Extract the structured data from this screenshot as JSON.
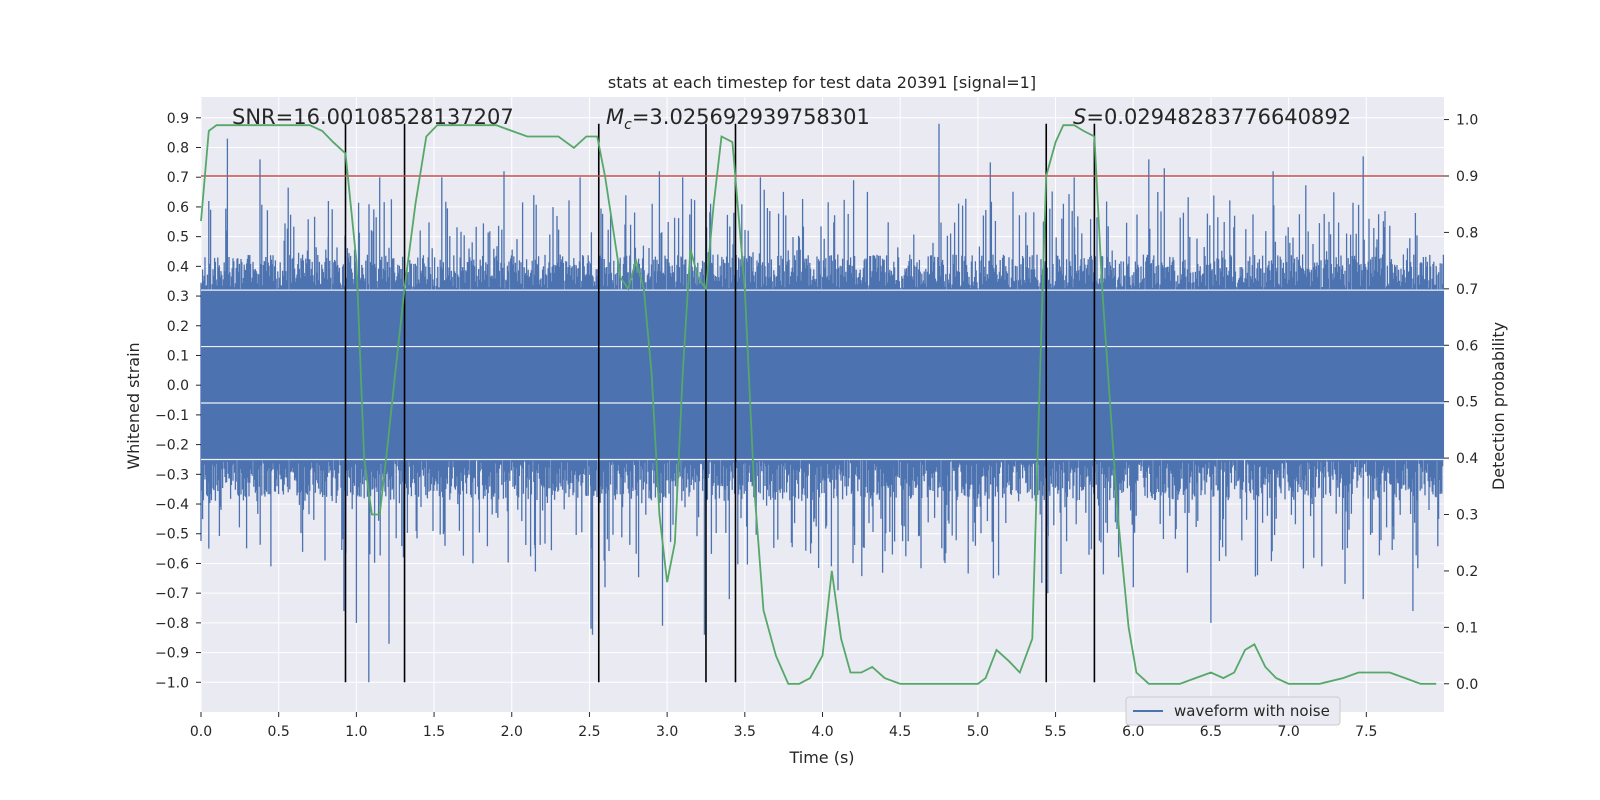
{
  "chart_data": {
    "type": "line",
    "title": "stats at each timestep for test data 20391 [signal=1]",
    "xlabel": "Time (s)",
    "ylabel_left": "Whitened strain",
    "ylabel_right": "Detection probability",
    "xlim": [
      0.0,
      8.0
    ],
    "ylim_left": [
      -1.1,
      0.97
    ],
    "ylim_right": [
      -0.05,
      1.04
    ],
    "x_ticks": [
      "0.0",
      "0.5",
      "1.0",
      "1.5",
      "2.0",
      "2.5",
      "3.0",
      "3.5",
      "4.0",
      "4.5",
      "5.0",
      "5.5",
      "6.0",
      "6.5",
      "7.0",
      "7.5"
    ],
    "x_tick_values": [
      0,
      0.5,
      1,
      1.5,
      2,
      2.5,
      3,
      3.5,
      4,
      4.5,
      5,
      5.5,
      6,
      6.5,
      7,
      7.5
    ],
    "y_left_ticks": [
      "0.9",
      "0.8",
      "0.7",
      "0.6",
      "0.5",
      "0.4",
      "0.3",
      "0.2",
      "0.1",
      "0.0",
      "−0.1",
      "−0.2",
      "−0.3",
      "−0.4",
      "−0.5",
      "−0.6",
      "−0.7",
      "−0.8",
      "−0.9",
      "−1.0"
    ],
    "y_left_tick_values": [
      0.9,
      0.8,
      0.7,
      0.6,
      0.5,
      0.4,
      0.3,
      0.2,
      0.1,
      0.0,
      -0.1,
      -0.2,
      -0.3,
      -0.4,
      -0.5,
      -0.6,
      -0.7,
      -0.8,
      -0.9,
      -1.0
    ],
    "y_right_ticks": [
      "1.0",
      "0.9",
      "0.8",
      "0.7",
      "0.6",
      "0.5",
      "0.4",
      "0.3",
      "0.2",
      "0.1",
      "0.0"
    ],
    "y_right_tick_values": [
      1.0,
      0.9,
      0.8,
      0.7,
      0.6,
      0.5,
      0.4,
      0.3,
      0.2,
      0.1,
      0.0
    ],
    "annotations": {
      "snr": "SNR=16.00108528137207",
      "mc_symbol": "M",
      "mc_sub": "c",
      "mc_value": "=3.025692939758301",
      "s_symbol": "S",
      "s_value": "=0.02948283776640892"
    },
    "threshold": {
      "axis": "right",
      "value": 0.9,
      "color": "#c44e52"
    },
    "vertical_lines": [
      0.93,
      1.31,
      2.56,
      3.25,
      3.44,
      5.44,
      5.75
    ],
    "vertical_line_range_left": [
      -1.0,
      0.88
    ],
    "waveform": {
      "name": "waveform with noise",
      "color": "#4c72b0",
      "envelope": {
        "upper_typical": 0.32,
        "lower_typical": -0.25
      },
      "spikes": [
        {
          "x": 0.17,
          "y": 0.83
        },
        {
          "x": 0.38,
          "y": 0.76
        },
        {
          "x": 0.05,
          "y": 0.62
        },
        {
          "x": 0.82,
          "y": 0.62
        },
        {
          "x": 1.15,
          "y": 0.7
        },
        {
          "x": 1.55,
          "y": 0.7
        },
        {
          "x": 1.95,
          "y": 0.72
        },
        {
          "x": 2.44,
          "y": 0.7
        },
        {
          "x": 2.95,
          "y": 0.72
        },
        {
          "x": 3.1,
          "y": 0.7
        },
        {
          "x": 3.6,
          "y": 0.7
        },
        {
          "x": 4.75,
          "y": 0.88
        },
        {
          "x": 4.2,
          "y": 0.69
        },
        {
          "x": 5.08,
          "y": 0.75
        },
        {
          "x": 5.62,
          "y": 0.7
        },
        {
          "x": 6.1,
          "y": 0.76
        },
        {
          "x": 6.2,
          "y": 0.73
        },
        {
          "x": 7.48,
          "y": 0.77
        },
        {
          "x": 6.9,
          "y": 0.72
        },
        {
          "x": 0.92,
          "y": -0.76
        },
        {
          "x": 1.0,
          "y": -0.8
        },
        {
          "x": 1.08,
          "y": -1.0
        },
        {
          "x": 1.21,
          "y": -0.87
        },
        {
          "x": 2.51,
          "y": -0.82
        },
        {
          "x": 2.52,
          "y": -0.84
        },
        {
          "x": 2.6,
          "y": -0.68
        },
        {
          "x": 2.97,
          "y": -0.81
        },
        {
          "x": 3.24,
          "y": -0.84
        },
        {
          "x": 3.4,
          "y": -0.72
        },
        {
          "x": 4.1,
          "y": -0.69
        },
        {
          "x": 5.1,
          "y": -0.65
        },
        {
          "x": 6.0,
          "y": -0.68
        },
        {
          "x": 6.5,
          "y": -0.8
        },
        {
          "x": 6.8,
          "y": -0.64
        },
        {
          "x": 7.48,
          "y": -0.72
        },
        {
          "x": 7.8,
          "y": -0.76
        },
        {
          "x": 0.05,
          "y": -0.55
        },
        {
          "x": 0.45,
          "y": -0.61
        },
        {
          "x": 1.75,
          "y": -0.6
        },
        {
          "x": 2.15,
          "y": -0.55
        },
        {
          "x": 4.45,
          "y": -0.57
        },
        {
          "x": 5.45,
          "y": -0.7
        }
      ]
    },
    "probability": {
      "color": "#55a868",
      "points": [
        [
          0.0,
          0.82
        ],
        [
          0.05,
          0.98
        ],
        [
          0.1,
          0.99
        ],
        [
          0.5,
          0.99
        ],
        [
          0.7,
          0.99
        ],
        [
          0.78,
          0.98
        ],
        [
          0.85,
          0.96
        ],
        [
          0.93,
          0.94
        ],
        [
          1.0,
          0.75
        ],
        [
          1.05,
          0.4
        ],
        [
          1.1,
          0.3
        ],
        [
          1.15,
          0.3
        ],
        [
          1.2,
          0.42
        ],
        [
          1.25,
          0.55
        ],
        [
          1.31,
          0.7
        ],
        [
          1.38,
          0.85
        ],
        [
          1.45,
          0.97
        ],
        [
          1.52,
          0.99
        ],
        [
          1.6,
          0.99
        ],
        [
          1.9,
          0.99
        ],
        [
          2.0,
          0.98
        ],
        [
          2.1,
          0.97
        ],
        [
          2.2,
          0.97
        ],
        [
          2.3,
          0.97
        ],
        [
          2.4,
          0.95
        ],
        [
          2.48,
          0.97
        ],
        [
          2.55,
          0.97
        ],
        [
          2.6,
          0.9
        ],
        [
          2.7,
          0.72
        ],
        [
          2.75,
          0.7
        ],
        [
          2.8,
          0.75
        ],
        [
          2.85,
          0.7
        ],
        [
          2.9,
          0.55
        ],
        [
          2.95,
          0.3
        ],
        [
          3.0,
          0.18
        ],
        [
          3.05,
          0.25
        ],
        [
          3.1,
          0.55
        ],
        [
          3.15,
          0.77
        ],
        [
          3.2,
          0.72
        ],
        [
          3.25,
          0.7
        ],
        [
          3.3,
          0.85
        ],
        [
          3.35,
          0.97
        ],
        [
          3.42,
          0.96
        ],
        [
          3.5,
          0.7
        ],
        [
          3.56,
          0.35
        ],
        [
          3.62,
          0.13
        ],
        [
          3.7,
          0.05
        ],
        [
          3.78,
          0.0
        ],
        [
          3.85,
          0.0
        ],
        [
          3.92,
          0.01
        ],
        [
          4.0,
          0.05
        ],
        [
          4.06,
          0.2
        ],
        [
          4.12,
          0.08
        ],
        [
          4.18,
          0.02
        ],
        [
          4.25,
          0.02
        ],
        [
          4.32,
          0.03
        ],
        [
          4.4,
          0.01
        ],
        [
          4.5,
          0.0
        ],
        [
          4.7,
          0.0
        ],
        [
          4.85,
          0.0
        ],
        [
          5.0,
          0.0
        ],
        [
          5.05,
          0.01
        ],
        [
          5.12,
          0.06
        ],
        [
          5.2,
          0.04
        ],
        [
          5.27,
          0.02
        ],
        [
          5.35,
          0.08
        ],
        [
          5.4,
          0.55
        ],
        [
          5.44,
          0.9
        ],
        [
          5.5,
          0.96
        ],
        [
          5.55,
          0.99
        ],
        [
          5.62,
          0.99
        ],
        [
          5.68,
          0.98
        ],
        [
          5.75,
          0.97
        ],
        [
          5.8,
          0.7
        ],
        [
          5.9,
          0.3
        ],
        [
          5.97,
          0.1
        ],
        [
          6.02,
          0.02
        ],
        [
          6.1,
          0.0
        ],
        [
          6.3,
          0.0
        ],
        [
          6.4,
          0.01
        ],
        [
          6.5,
          0.02
        ],
        [
          6.58,
          0.01
        ],
        [
          6.65,
          0.02
        ],
        [
          6.72,
          0.06
        ],
        [
          6.78,
          0.07
        ],
        [
          6.85,
          0.03
        ],
        [
          6.92,
          0.01
        ],
        [
          7.0,
          0.0
        ],
        [
          7.1,
          0.0
        ],
        [
          7.2,
          0.0
        ],
        [
          7.35,
          0.01
        ],
        [
          7.45,
          0.02
        ],
        [
          7.55,
          0.02
        ],
        [
          7.65,
          0.02
        ],
        [
          7.75,
          0.01
        ],
        [
          7.85,
          0.0
        ],
        [
          7.95,
          0.0
        ]
      ]
    },
    "legend": {
      "placement": "bottom-right",
      "entries": [
        "waveform with noise"
      ]
    },
    "grid": true,
    "style": {
      "plot_background": "#eaeaf2",
      "grid_color": "#ffffff"
    }
  }
}
